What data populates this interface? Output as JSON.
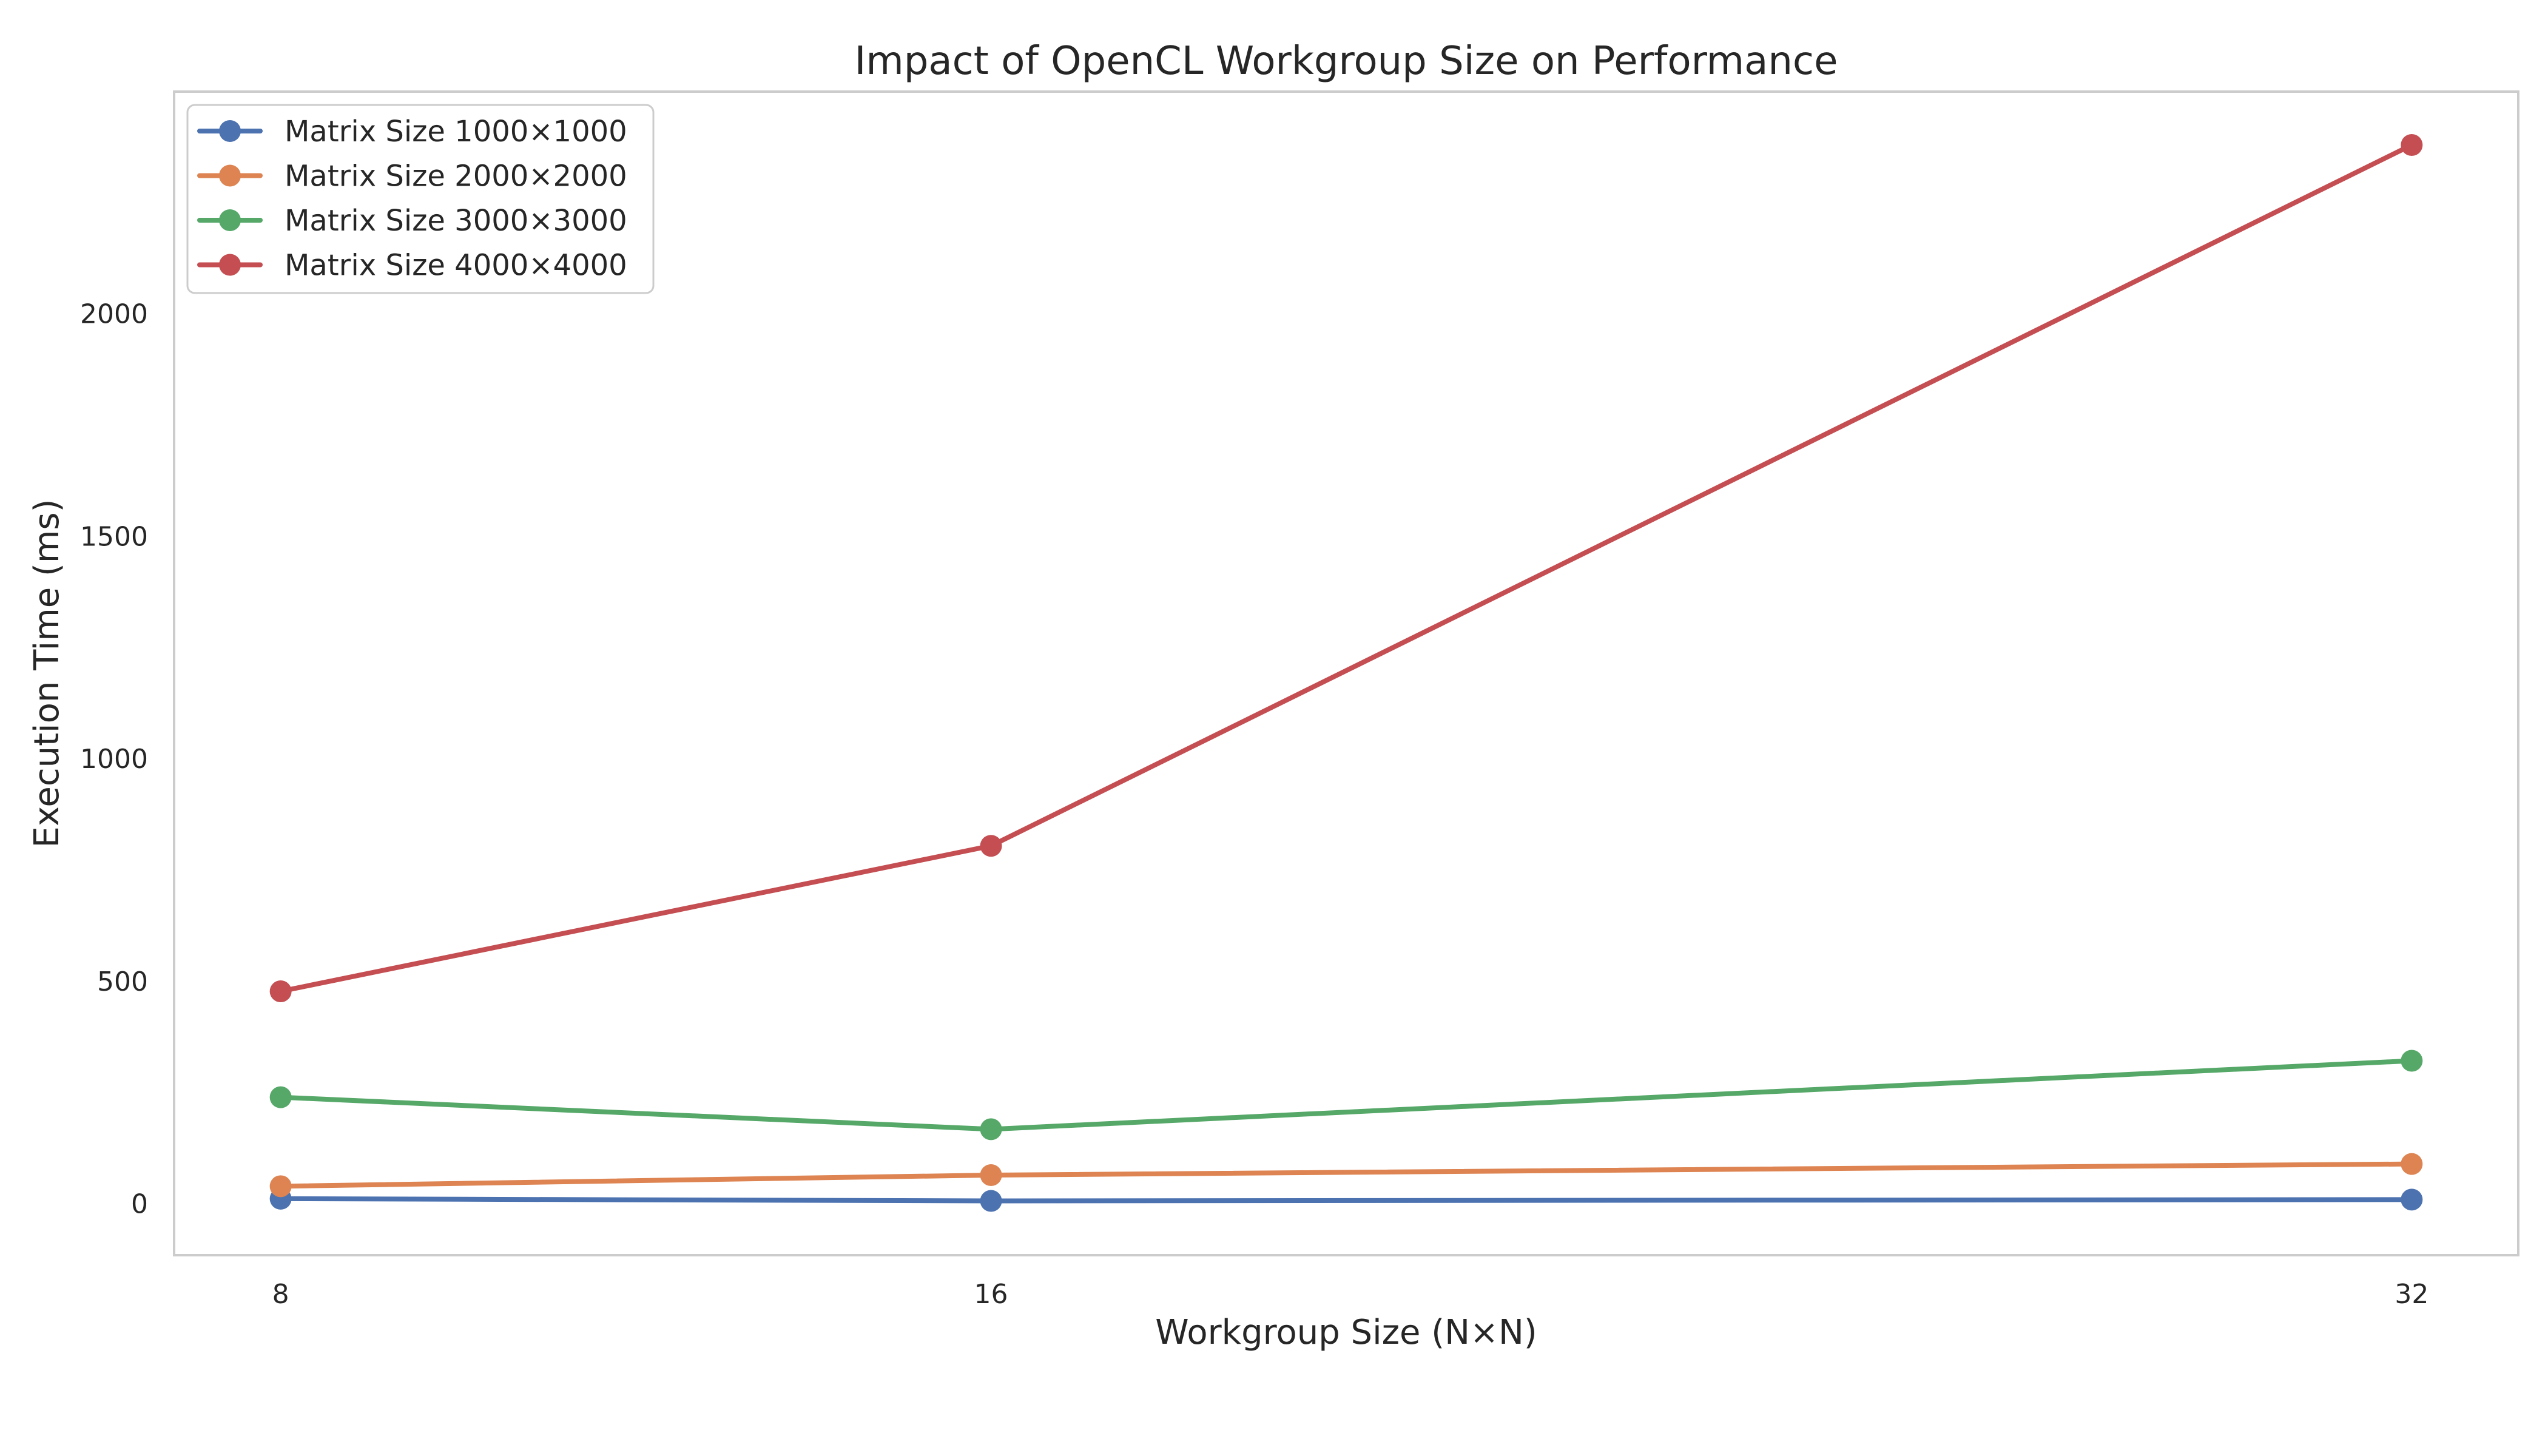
{
  "chart_data": {
    "type": "line",
    "title": "Impact of OpenCL Workgroup Size on Performance",
    "xlabel": "Workgroup Size (N×N)",
    "ylabel": "Execution Time (ms)",
    "x_categories": [
      "8",
      "16",
      "32"
    ],
    "x_values": [
      8,
      16,
      32
    ],
    "xlim": [
      6.8,
      33.2
    ],
    "ylim": [
      -115,
      2500
    ],
    "y_ticks": [
      0,
      500,
      1000,
      1500,
      2000
    ],
    "grid": false,
    "legend_position": "top-left",
    "series": [
      {
        "name": "Matrix Size 1000×1000",
        "color": "#4c72b0",
        "values": [
          12,
          7,
          10
        ]
      },
      {
        "name": "Matrix Size 2000×2000",
        "color": "#dd8452",
        "values": [
          40,
          65,
          90
        ]
      },
      {
        "name": "Matrix Size 3000×3000",
        "color": "#55a868",
        "values": [
          240,
          168,
          322
        ]
      },
      {
        "name": "Matrix Size 4000×4000",
        "color": "#c44e52",
        "values": [
          478,
          805,
          2380
        ]
      }
    ]
  }
}
